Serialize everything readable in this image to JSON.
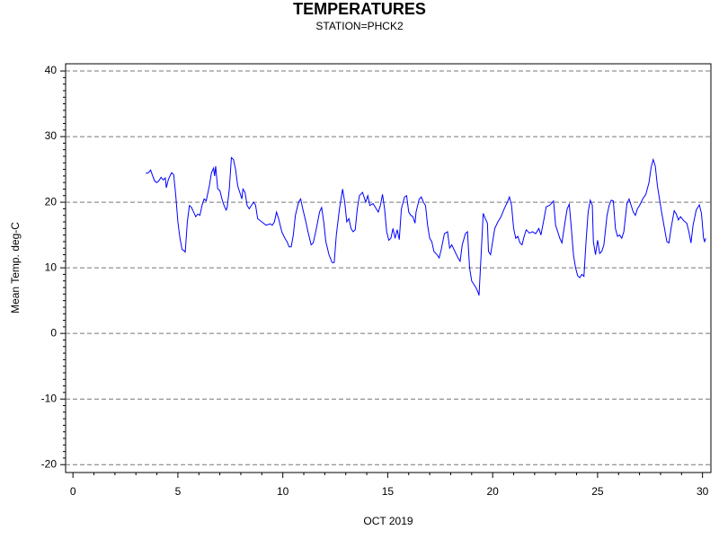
{
  "chart_data": {
    "type": "line",
    "title": "TEMPERATURES",
    "subtitle": "STATION=PHCK2",
    "xlabel": "OCT 2019",
    "ylabel": "Mean Temp. deg-C",
    "xlim": [
      -0.35,
      30.4
    ],
    "ylim": [
      -21.2,
      41.1
    ],
    "xticks": [
      0,
      5,
      10,
      15,
      20,
      25,
      30
    ],
    "yticks": [
      -20,
      -10,
      0,
      10,
      20,
      30,
      40
    ],
    "grid": true,
    "series": [
      {
        "name": "Mean Temp",
        "color": "#0000ff",
        "x": [
          3.47,
          3.6,
          3.7,
          3.8,
          3.9,
          4.0,
          4.1,
          4.2,
          4.3,
          4.4,
          4.45,
          4.55,
          4.7,
          4.8,
          4.9,
          5.0,
          5.1,
          5.2,
          5.3,
          5.35,
          5.45,
          5.55,
          5.65,
          5.75,
          5.85,
          5.95,
          6.05,
          6.15,
          6.25,
          6.35,
          6.5,
          6.6,
          6.7,
          6.75,
          6.8,
          6.9,
          7.0,
          7.1,
          7.2,
          7.3,
          7.35,
          7.45,
          7.55,
          7.65,
          7.75,
          7.85,
          7.95,
          8.05,
          8.1,
          8.2,
          8.3,
          8.4,
          8.5,
          8.6,
          8.7,
          8.8,
          9.0,
          9.2,
          9.4,
          9.5,
          9.6,
          9.7,
          9.8,
          9.95,
          10.1,
          10.2,
          10.3,
          10.4,
          10.5,
          10.6,
          10.75,
          10.85,
          10.95,
          11.1,
          11.2,
          11.35,
          11.45,
          11.6,
          11.75,
          11.85,
          11.95,
          12.05,
          12.2,
          12.35,
          12.45,
          12.55,
          12.7,
          12.85,
          12.95,
          13.05,
          13.15,
          13.25,
          13.35,
          13.45,
          13.55,
          13.65,
          13.8,
          13.95,
          14.05,
          14.15,
          14.3,
          14.45,
          14.55,
          14.65,
          14.75,
          14.85,
          14.95,
          15.05,
          15.15,
          15.25,
          15.35,
          15.45,
          15.55,
          15.65,
          15.8,
          15.9,
          16.0,
          16.1,
          16.2,
          16.3,
          16.35,
          16.5,
          16.6,
          16.7,
          16.8,
          16.9,
          17.0,
          17.1,
          17.2,
          17.35,
          17.45,
          17.55,
          17.7,
          17.85,
          17.95,
          18.05,
          18.2,
          18.35,
          18.45,
          18.55,
          18.7,
          18.8,
          18.9,
          19.0,
          19.1,
          19.2,
          19.3,
          19.35,
          19.45,
          19.55,
          19.65,
          19.75,
          19.8,
          19.9,
          20.0,
          20.1,
          20.25,
          20.4,
          20.55,
          20.7,
          20.8,
          20.9,
          21.0,
          21.1,
          21.2,
          21.3,
          21.4,
          21.5,
          21.6,
          21.75,
          21.9,
          22.05,
          22.2,
          22.3,
          22.45,
          22.55,
          22.7,
          22.8,
          22.9,
          23.0,
          23.1,
          23.2,
          23.3,
          23.45,
          23.55,
          23.65,
          23.75,
          23.85,
          23.95,
          24.05,
          24.15,
          24.25,
          24.35,
          24.45,
          24.55,
          24.65,
          24.75,
          24.8,
          24.9,
          25.0,
          25.1,
          25.2,
          25.3,
          25.45,
          25.55,
          25.65,
          25.75,
          25.85,
          25.95,
          26.05,
          26.15,
          26.25,
          26.4,
          26.5,
          26.6,
          26.7,
          26.8,
          26.9,
          27.0,
          27.15,
          27.3,
          27.45,
          27.55,
          27.65,
          27.75,
          27.85,
          27.95,
          28.05,
          28.2,
          28.3,
          28.4,
          28.5,
          28.65,
          28.75,
          28.85,
          28.95,
          29.1,
          29.25,
          29.35,
          29.45,
          29.55,
          29.7,
          29.85,
          29.95,
          30.05,
          30.1,
          30.15
        ],
        "values": [
          24.4,
          24.5,
          24.9,
          24.0,
          23.2,
          23.0,
          23.3,
          23.8,
          23.4,
          23.7,
          22.2,
          23.5,
          24.5,
          24.2,
          21,
          17,
          14.5,
          12.8,
          12.6,
          12.4,
          17,
          19.5,
          19.2,
          18.5,
          17.8,
          18.2,
          18,
          19.5,
          20.5,
          20.2,
          22.5,
          24.5,
          25.2,
          24,
          25.5,
          22,
          21.8,
          20.5,
          19.5,
          18.8,
          19.2,
          22,
          26.8,
          26.5,
          25,
          22.5,
          21.5,
          20.5,
          22,
          21.5,
          19.5,
          19,
          19.5,
          20,
          19.6,
          17.5,
          17,
          16.5,
          16.7,
          16.5,
          17,
          18.5,
          17.5,
          15.5,
          14.5,
          14,
          13.2,
          13.2,
          15,
          18,
          20,
          20.5,
          19,
          17,
          15.5,
          13.5,
          13.8,
          16,
          18.5,
          19.2,
          17,
          14,
          12,
          10.8,
          10.8,
          15,
          19,
          22,
          20,
          17,
          17.5,
          16,
          15.5,
          15.8,
          19,
          21,
          21.5,
          20,
          21,
          19.5,
          19.8,
          19,
          18.5,
          19.5,
          21.2,
          19,
          15.5,
          14.2,
          14.5,
          16,
          14.5,
          15.8,
          14.3,
          19,
          20.8,
          21,
          18.5,
          18,
          17.8,
          16.8,
          18.5,
          20.5,
          20.8,
          20,
          19.5,
          16.5,
          14.5,
          14,
          12.5,
          12,
          11.5,
          12.8,
          15.2,
          15.5,
          13,
          13.5,
          12.5,
          11.5,
          11,
          13.5,
          15.2,
          15.5,
          10,
          8,
          7.5,
          7,
          6.3,
          5.8,
          12,
          18.3,
          17.5,
          16.8,
          12.5,
          12,
          14,
          16,
          17,
          17.8,
          19,
          20,
          20.8,
          19.5,
          16,
          14.5,
          14.8,
          13.8,
          13.5,
          14.8,
          15.8,
          15.3,
          15.5,
          15.2,
          16,
          15,
          17.5,
          19.3,
          19.5,
          19.8,
          20.2,
          16.5,
          15.5,
          14.5,
          13.8,
          17,
          19,
          19.7,
          16,
          12,
          10,
          8.8,
          8.5,
          9,
          8.7,
          14,
          18.5,
          20.3,
          19.5,
          14,
          12,
          14.2,
          12.2,
          12.5,
          13.5,
          18,
          19.5,
          20.3,
          20.2,
          16,
          14.8,
          15,
          14.5,
          15.5,
          19.8,
          20.5,
          19.5,
          18.5,
          18,
          19,
          19.5,
          20.5,
          21.2,
          23,
          25.3,
          26.5,
          25.5,
          22.5,
          20.5,
          18.5,
          15.8,
          14,
          13.8,
          16,
          18.7,
          18.2,
          17.3,
          17.8,
          17.2,
          16.8,
          15.5,
          13.8,
          16.5,
          18.8,
          19.6,
          18.3,
          14.5,
          14,
          14.5
        ]
      }
    ]
  }
}
